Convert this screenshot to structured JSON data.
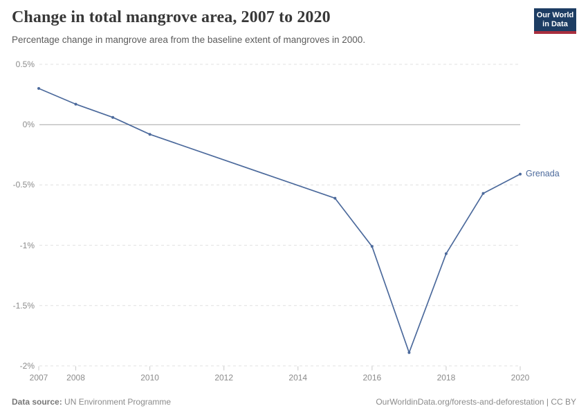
{
  "header": {
    "title": "Change in total mangrove area, 2007 to 2020",
    "subtitle": "Percentage change in mangrove area from the baseline extent of mangroves in 2000.",
    "logo": {
      "line1": "Our World",
      "line2": "in Data"
    }
  },
  "chart_data": {
    "type": "line",
    "title": "Change in total mangrove area, 2007 to 2020",
    "subtitle": "Percentage change in mangrove area from the baseline extent of mangroves in 2000.",
    "x": [
      2007,
      2008,
      2009,
      2010,
      2015,
      2016,
      2017,
      2018,
      2019,
      2020
    ],
    "series": [
      {
        "name": "Grenada",
        "color": "#4C6A9C",
        "values": [
          0.3,
          0.17,
          0.06,
          -0.08,
          -0.61,
          -1.01,
          -1.89,
          -1.07,
          -0.57,
          -0.41
        ]
      }
    ],
    "xlabel": "",
    "ylabel": "",
    "xlim": [
      2007,
      2020
    ],
    "ylim": [
      -2,
      0.5
    ],
    "xticks": [
      2007,
      2008,
      2010,
      2012,
      2014,
      2016,
      2018,
      2020
    ],
    "yticks": [
      0.5,
      0,
      -0.5,
      -1,
      -1.5,
      -2
    ],
    "ytick_labels": [
      "0.5%",
      "0%",
      "-0.5%",
      "-1%",
      "-1.5%",
      "-2%"
    ],
    "grid": "horizontal dashed, zero line solid",
    "legend": "label at end of line"
  },
  "colors": {
    "line": "#4C6A9C",
    "grid": "#e0e0e0",
    "zero_line": "#a5a5a5",
    "tick": "#c9c9c9",
    "tick_text": "#8b8b8b",
    "logo_bg": "#1d3d63",
    "logo_bar": "#a92e3e"
  },
  "footer": {
    "source_label": "Data source:",
    "source_value": "UN Environment Programme",
    "link": "OurWorldinData.org/forests-and-deforestation | CC BY"
  }
}
